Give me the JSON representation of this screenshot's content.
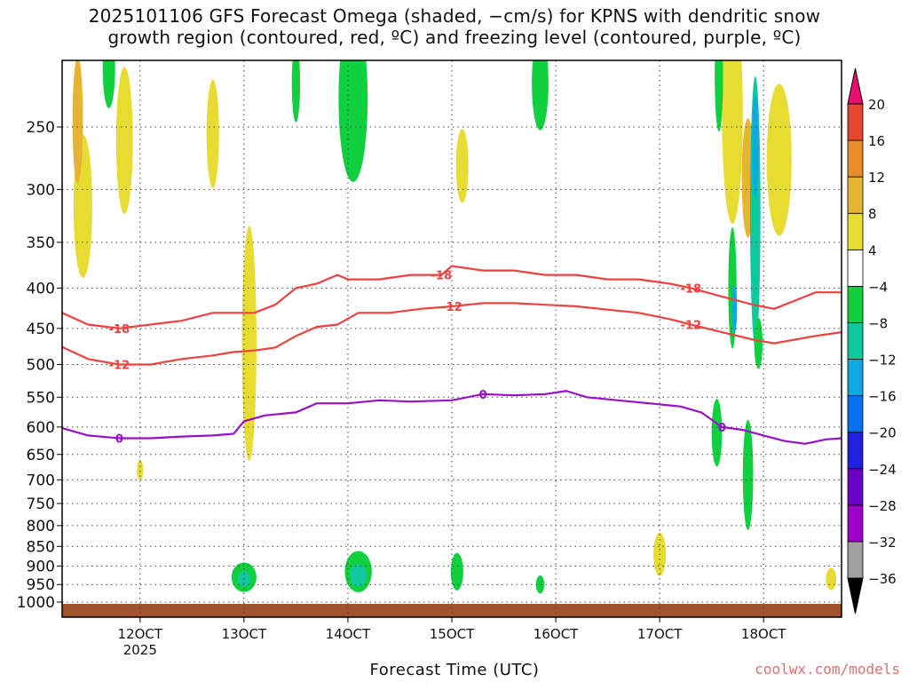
{
  "chart_data": {
    "type": "heatmap",
    "title": "2025101106 GFS Forecast Omega (shaded, −cm/s) for KPNS with dendritic snow\ngrowth region (contoured, red, ºC) and freezing level (contoured, purple, ºC)",
    "xlabel": "Forecast Time (UTC)",
    "ylabel": "",
    "watermark": "coolwx.com/models",
    "x_ticks": [
      {
        "day": 12,
        "label": "12OCT",
        "sublabel": "2025"
      },
      {
        "day": 13,
        "label": "13OCT"
      },
      {
        "day": 14,
        "label": "14OCT"
      },
      {
        "day": 15,
        "label": "15OCT"
      },
      {
        "day": 16,
        "label": "16OCT"
      },
      {
        "day": 17,
        "label": "17OCT"
      },
      {
        "day": 18,
        "label": "18OCT"
      }
    ],
    "x_range": [
      11.25,
      18.75
    ],
    "y_ticks": [
      250,
      300,
      350,
      400,
      450,
      500,
      550,
      600,
      650,
      700,
      750,
      800,
      850,
      900,
      950,
      1000
    ],
    "y_range": [
      200,
      1010
    ],
    "colorbar": {
      "levels": [
        -36,
        -32,
        -28,
        -24,
        -20,
        -16,
        -12,
        -8,
        -4,
        4,
        8,
        12,
        16,
        20
      ],
      "colors": [
        "#000000",
        "#a0a0a0",
        "#9a00c8",
        "#6a00c8",
        "#2020e0",
        "#0a6ef0",
        "#10a8e0",
        "#10c8a0",
        "#10d040",
        "#ffffff",
        "#e6dc32",
        "#e6b432",
        "#e68c28",
        "#e64632",
        "#e6106e"
      ]
    },
    "series": [
      {
        "name": "-18C isotherm",
        "color": "#f04040",
        "label": "-18",
        "x": [
          11.25,
          11.5,
          11.8,
          12.1,
          12.4,
          12.7,
          12.9,
          13.1,
          13.3,
          13.5,
          13.7,
          13.9,
          14.0,
          14.3,
          14.6,
          14.9,
          15.0,
          15.3,
          15.6,
          15.9,
          16.2,
          16.5,
          16.8,
          17.1,
          17.3,
          17.6,
          17.9,
          18.1,
          18.3,
          18.5,
          18.75
        ],
        "y": [
          430,
          445,
          450,
          445,
          440,
          430,
          430,
          430,
          420,
          400,
          395,
          385,
          390,
          390,
          385,
          385,
          375,
          380,
          380,
          385,
          385,
          390,
          390,
          395,
          400,
          410,
          420,
          425,
          415,
          405,
          405
        ]
      },
      {
        "name": "-12C isotherm",
        "color": "#f04040",
        "label": "-12",
        "x": [
          11.25,
          11.5,
          11.8,
          12.1,
          12.4,
          12.7,
          12.9,
          13.1,
          13.3,
          13.5,
          13.7,
          13.9,
          14.1,
          14.4,
          14.7,
          15.0,
          15.3,
          15.6,
          15.9,
          16.2,
          16.5,
          16.8,
          17.1,
          17.3,
          17.6,
          17.9,
          18.1,
          18.3,
          18.5,
          18.75
        ],
        "y": [
          475,
          492,
          500,
          500,
          492,
          487,
          482,
          480,
          476,
          460,
          448,
          445,
          430,
          430,
          425,
          422,
          418,
          418,
          420,
          422,
          426,
          430,
          438,
          445,
          455,
          465,
          470,
          465,
          460,
          455
        ]
      },
      {
        "name": "0C freezing level",
        "color": "#9a10c8",
        "label": "0",
        "x": [
          11.25,
          11.5,
          11.8,
          12.1,
          12.4,
          12.7,
          12.9,
          13.0,
          13.2,
          13.5,
          13.7,
          14.0,
          14.3,
          14.6,
          15.0,
          15.3,
          15.6,
          15.9,
          16.1,
          16.3,
          16.6,
          16.9,
          17.2,
          17.4,
          17.6,
          17.8,
          18.0,
          18.2,
          18.4,
          18.6,
          18.75
        ],
        "y": [
          602,
          615,
          620,
          620,
          617,
          615,
          612,
          590,
          580,
          575,
          560,
          560,
          555,
          557,
          555,
          545,
          547,
          545,
          540,
          550,
          555,
          560,
          565,
          575,
          600,
          605,
          615,
          625,
          630,
          622,
          620
        ]
      }
    ],
    "shaded_features": [
      {
        "x": 11.45,
        "y": 315,
        "rx": 0.09,
        "ry": 65,
        "value": 6
      },
      {
        "x": 11.4,
        "y": 245,
        "rx": 0.05,
        "ry": 45,
        "value": 10
      },
      {
        "x": 11.85,
        "y": 260,
        "rx": 0.08,
        "ry": 55,
        "value": 6
      },
      {
        "x": 12.7,
        "y": 255,
        "rx": 0.06,
        "ry": 40,
        "value": 6
      },
      {
        "x": 13.05,
        "y": 470,
        "rx": 0.07,
        "ry": 155,
        "value": 6
      },
      {
        "x": 12.0,
        "y": 680,
        "rx": 0.03,
        "ry": 20,
        "value": 6
      },
      {
        "x": 11.7,
        "y": 210,
        "rx": 0.06,
        "ry": 25,
        "value": -6
      },
      {
        "x": 14.05,
        "y": 230,
        "rx": 0.14,
        "ry": 55,
        "value": -6
      },
      {
        "x": 13.5,
        "y": 220,
        "rx": 0.04,
        "ry": 25,
        "value": -6
      },
      {
        "x": 15.1,
        "y": 280,
        "rx": 0.06,
        "ry": 30,
        "value": 6
      },
      {
        "x": 15.85,
        "y": 220,
        "rx": 0.08,
        "ry": 30,
        "value": -6
      },
      {
        "x": 17.7,
        "y": 240,
        "rx": 0.1,
        "ry": 75,
        "value": 6
      },
      {
        "x": 17.85,
        "y": 290,
        "rx": 0.06,
        "ry": 50,
        "value": 10
      },
      {
        "x": 17.92,
        "y": 320,
        "rx": 0.05,
        "ry": 120,
        "value": -10
      },
      {
        "x": 17.92,
        "y": 265,
        "rx": 0.03,
        "ry": 40,
        "value": -16
      },
      {
        "x": 17.57,
        "y": 215,
        "rx": 0.04,
        "ry": 35,
        "value": -6
      },
      {
        "x": 18.15,
        "y": 275,
        "rx": 0.12,
        "ry": 60,
        "value": 6
      },
      {
        "x": 17.7,
        "y": 400,
        "rx": 0.04,
        "ry": 70,
        "value": -8
      },
      {
        "x": 17.72,
        "y": 425,
        "rx": 0.025,
        "ry": 30,
        "value": -16
      },
      {
        "x": 17.95,
        "y": 470,
        "rx": 0.04,
        "ry": 35,
        "value": -8
      },
      {
        "x": 17.55,
        "y": 610,
        "rx": 0.05,
        "ry": 60,
        "value": -6
      },
      {
        "x": 17.85,
        "y": 690,
        "rx": 0.05,
        "ry": 110,
        "value": -6
      },
      {
        "x": 13.0,
        "y": 930,
        "rx": 0.12,
        "ry": 40,
        "value": -6
      },
      {
        "x": 13.0,
        "y": 935,
        "rx": 0.06,
        "ry": 20,
        "value": -10
      },
      {
        "x": 14.1,
        "y": 915,
        "rx": 0.13,
        "ry": 55,
        "value": -6
      },
      {
        "x": 14.1,
        "y": 925,
        "rx": 0.08,
        "ry": 30,
        "value": -10
      },
      {
        "x": 15.05,
        "y": 915,
        "rx": 0.06,
        "ry": 50,
        "value": -6
      },
      {
        "x": 15.85,
        "y": 950,
        "rx": 0.04,
        "ry": 25,
        "value": -6
      },
      {
        "x": 17.0,
        "y": 870,
        "rx": 0.06,
        "ry": 55,
        "value": 6
      },
      {
        "x": 18.65,
        "y": 935,
        "rx": 0.05,
        "ry": 30,
        "value": 6
      }
    ]
  }
}
